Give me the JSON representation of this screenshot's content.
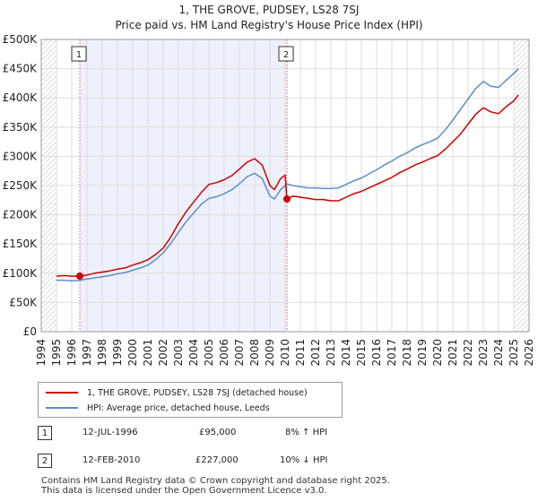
{
  "title_line1": "1, THE GROVE, PUDSEY, LS28 7SJ",
  "title_line2": "Price paid vs. HM Land Registry's House Price Index (HPI)",
  "chart_data": {
    "type": "line",
    "title": "1, THE GROVE, PUDSEY, LS28 7SJ — Price paid vs. HM Land Registry's House Price Index (HPI)",
    "xlabel": "",
    "ylabel": "",
    "xlim": [
      1994,
      2026
    ],
    "ylim": [
      0,
      500000
    ],
    "x_ticks": [
      1994,
      1995,
      1996,
      1997,
      1998,
      1999,
      2000,
      2001,
      2002,
      2003,
      2004,
      2005,
      2006,
      2007,
      2008,
      2009,
      2010,
      2011,
      2012,
      2013,
      2014,
      2015,
      2016,
      2017,
      2018,
      2019,
      2020,
      2021,
      2022,
      2023,
      2024,
      2025,
      2026
    ],
    "y_ticks": [
      {
        "value": 0,
        "label": "£0"
      },
      {
        "value": 50000,
        "label": "£50K"
      },
      {
        "value": 100000,
        "label": "£100K"
      },
      {
        "value": 150000,
        "label": "£150K"
      },
      {
        "value": 200000,
        "label": "£200K"
      },
      {
        "value": 250000,
        "label": "£250K"
      },
      {
        "value": 300000,
        "label": "£300K"
      },
      {
        "value": 350000,
        "label": "£350K"
      },
      {
        "value": 400000,
        "label": "£400K"
      },
      {
        "value": 450000,
        "label": "£450K"
      },
      {
        "value": 500000,
        "label": "£500K"
      }
    ],
    "shaded_range": [
      1996.53,
      2010.12
    ],
    "hatched_ranges": [
      [
        1994,
        1995
      ],
      [
        2025.0,
        2026
      ]
    ],
    "series": [
      {
        "name": "1, THE GROVE, PUDSEY, LS28 7SJ (detached house)",
        "color": "#cc0000",
        "points": [
          [
            1995.0,
            95000
          ],
          [
            1995.5,
            96000
          ],
          [
            1996.0,
            95000
          ],
          [
            1996.53,
            95000
          ],
          [
            1997.0,
            97000
          ],
          [
            1997.5,
            100000
          ],
          [
            1998.0,
            102000
          ],
          [
            1998.5,
            104000
          ],
          [
            1999.0,
            107000
          ],
          [
            1999.5,
            109000
          ],
          [
            2000.0,
            114000
          ],
          [
            2000.5,
            118000
          ],
          [
            2001.0,
            123000
          ],
          [
            2001.5,
            132000
          ],
          [
            2002.0,
            143000
          ],
          [
            2002.5,
            162000
          ],
          [
            2003.0,
            185000
          ],
          [
            2003.5,
            205000
          ],
          [
            2004.0,
            222000
          ],
          [
            2004.5,
            238000
          ],
          [
            2005.0,
            252000
          ],
          [
            2005.5,
            255000
          ],
          [
            2006.0,
            260000
          ],
          [
            2006.5,
            267000
          ],
          [
            2007.0,
            278000
          ],
          [
            2007.5,
            290000
          ],
          [
            2008.0,
            296000
          ],
          [
            2008.5,
            285000
          ],
          [
            2009.0,
            250000
          ],
          [
            2009.3,
            243000
          ],
          [
            2009.7,
            262000
          ],
          [
            2010.0,
            268000
          ],
          [
            2010.12,
            227000
          ],
          [
            2010.5,
            232000
          ],
          [
            2011.0,
            230000
          ],
          [
            2011.5,
            228000
          ],
          [
            2012.0,
            226000
          ],
          [
            2012.5,
            226000
          ],
          [
            2013.0,
            224000
          ],
          [
            2013.5,
            224000
          ],
          [
            2014.0,
            230000
          ],
          [
            2014.5,
            236000
          ],
          [
            2015.0,
            240000
          ],
          [
            2015.5,
            246000
          ],
          [
            2016.0,
            252000
          ],
          [
            2016.5,
            258000
          ],
          [
            2017.0,
            264000
          ],
          [
            2017.5,
            272000
          ],
          [
            2018.0,
            278000
          ],
          [
            2018.5,
            285000
          ],
          [
            2019.0,
            290000
          ],
          [
            2019.5,
            296000
          ],
          [
            2020.0,
            301000
          ],
          [
            2020.5,
            312000
          ],
          [
            2021.0,
            325000
          ],
          [
            2021.5,
            338000
          ],
          [
            2022.0,
            355000
          ],
          [
            2022.5,
            372000
          ],
          [
            2023.0,
            383000
          ],
          [
            2023.5,
            376000
          ],
          [
            2024.0,
            373000
          ],
          [
            2024.5,
            385000
          ],
          [
            2025.0,
            395000
          ],
          [
            2025.3,
            405000
          ]
        ]
      },
      {
        "name": "HPI: Average price, detached house, Leeds",
        "color": "#5b8ec9",
        "points": [
          [
            1995.0,
            88000
          ],
          [
            1995.5,
            88000
          ],
          [
            1996.0,
            87000
          ],
          [
            1996.53,
            88000
          ],
          [
            1997.0,
            90000
          ],
          [
            1997.5,
            92000
          ],
          [
            1998.0,
            94000
          ],
          [
            1998.5,
            96000
          ],
          [
            1999.0,
            99000
          ],
          [
            1999.5,
            101000
          ],
          [
            2000.0,
            105000
          ],
          [
            2000.5,
            109000
          ],
          [
            2001.0,
            114000
          ],
          [
            2001.5,
            123000
          ],
          [
            2002.0,
            135000
          ],
          [
            2002.5,
            151000
          ],
          [
            2003.0,
            170000
          ],
          [
            2003.5,
            188000
          ],
          [
            2004.0,
            203000
          ],
          [
            2004.5,
            218000
          ],
          [
            2005.0,
            228000
          ],
          [
            2005.5,
            231000
          ],
          [
            2006.0,
            236000
          ],
          [
            2006.5,
            243000
          ],
          [
            2007.0,
            253000
          ],
          [
            2007.5,
            265000
          ],
          [
            2008.0,
            271000
          ],
          [
            2008.5,
            262000
          ],
          [
            2009.0,
            232000
          ],
          [
            2009.3,
            227000
          ],
          [
            2009.7,
            243000
          ],
          [
            2010.0,
            250000
          ],
          [
            2010.12,
            253000
          ],
          [
            2010.5,
            250000
          ],
          [
            2011.0,
            248000
          ],
          [
            2011.5,
            246000
          ],
          [
            2012.0,
            246000
          ],
          [
            2012.5,
            245000
          ],
          [
            2013.0,
            245000
          ],
          [
            2013.5,
            246000
          ],
          [
            2014.0,
            252000
          ],
          [
            2014.5,
            258000
          ],
          [
            2015.0,
            263000
          ],
          [
            2015.5,
            270000
          ],
          [
            2016.0,
            277000
          ],
          [
            2016.5,
            285000
          ],
          [
            2017.0,
            292000
          ],
          [
            2017.5,
            300000
          ],
          [
            2018.0,
            306000
          ],
          [
            2018.5,
            314000
          ],
          [
            2019.0,
            320000
          ],
          [
            2019.5,
            325000
          ],
          [
            2020.0,
            331000
          ],
          [
            2020.5,
            345000
          ],
          [
            2021.0,
            362000
          ],
          [
            2021.5,
            380000
          ],
          [
            2022.0,
            398000
          ],
          [
            2022.5,
            416000
          ],
          [
            2023.0,
            428000
          ],
          [
            2023.5,
            420000
          ],
          [
            2024.0,
            418000
          ],
          [
            2024.5,
            430000
          ],
          [
            2025.0,
            442000
          ],
          [
            2025.3,
            450000
          ]
        ]
      }
    ],
    "sales": [
      {
        "label": "1",
        "x": 1996.53,
        "y": 95000
      },
      {
        "label": "2",
        "x": 2010.12,
        "y": 227000
      }
    ]
  },
  "legend": {
    "property_label": "1, THE GROVE, PUDSEY, LS28 7SJ (detached house)",
    "hpi_label": "HPI: Average price, detached house, Leeds",
    "property_color": "#cc0000",
    "hpi_color": "#5b8ec9"
  },
  "transactions": [
    {
      "num": "1",
      "date": "12-JUL-1996",
      "price": "£95,000",
      "hpi": "8% ↑ HPI"
    },
    {
      "num": "2",
      "date": "12-FEB-2010",
      "price": "£227,000",
      "hpi": "10% ↓ HPI"
    }
  ],
  "footer_line1": "Contains HM Land Registry data © Crown copyright and database right 2025.",
  "footer_line2": "This data is licensed under the Open Government Licence v3.0."
}
